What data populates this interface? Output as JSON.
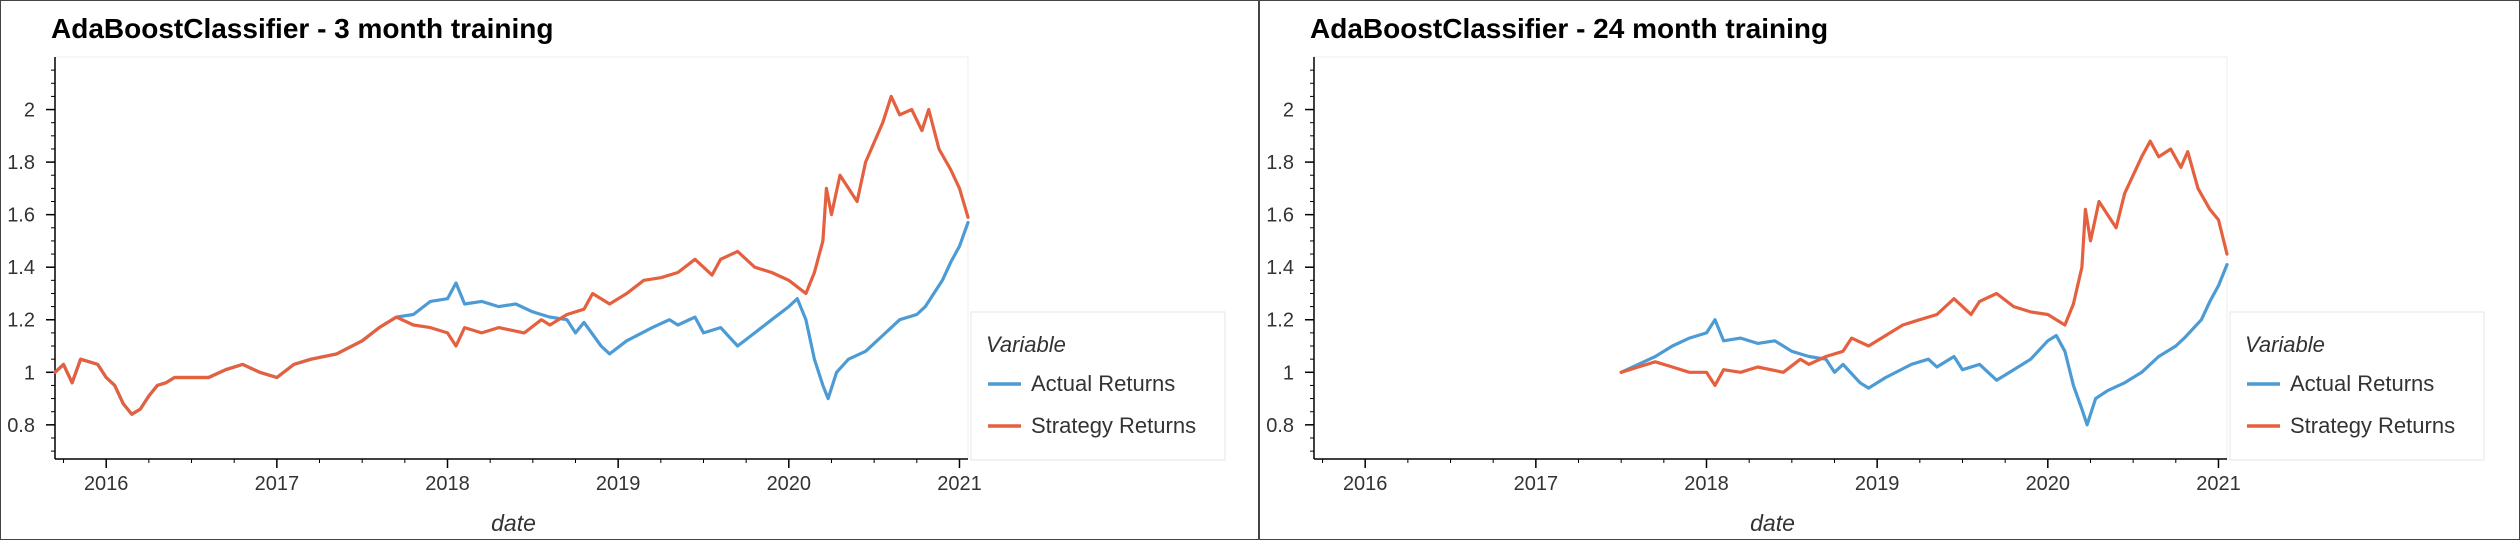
{
  "chart_data": [
    {
      "type": "line",
      "title": "AdaBoostClassifier - 3 month training",
      "xlabel": "date",
      "ylabel": "",
      "xlim": [
        2015.7,
        2021.05
      ],
      "ylim": [
        0.67,
        2.2
      ],
      "x_ticks": [
        2016,
        2017,
        2018,
        2019,
        2020,
        2021
      ],
      "x_tick_labels": [
        "2016",
        "2017",
        "2018",
        "2019",
        "2020",
        "2021"
      ],
      "y_ticks": [
        0.8,
        1,
        1.2,
        1.4,
        1.6,
        1.8,
        2
      ],
      "y_tick_labels": [
        "0.8",
        "1",
        "1.2",
        "1.4",
        "1.6",
        "1.8",
        "2"
      ],
      "grid": false,
      "legend_title": "Variable",
      "legend_position": "right",
      "series": [
        {
          "name": "Actual Returns",
          "color": "#4c9bd4",
          "points": [
            [
              2015.7,
              1.0
            ],
            [
              2015.75,
              1.03
            ],
            [
              2015.8,
              0.96
            ],
            [
              2015.85,
              1.05
            ],
            [
              2015.95,
              1.03
            ],
            [
              2016.0,
              0.98
            ],
            [
              2016.05,
              0.95
            ],
            [
              2016.1,
              0.88
            ],
            [
              2016.15,
              0.84
            ],
            [
              2016.2,
              0.86
            ],
            [
              2016.25,
              0.91
            ],
            [
              2016.3,
              0.95
            ],
            [
              2016.35,
              0.96
            ],
            [
              2016.4,
              0.98
            ],
            [
              2016.6,
              0.98
            ],
            [
              2016.7,
              1.01
            ],
            [
              2016.8,
              1.03
            ],
            [
              2016.9,
              1.0
            ],
            [
              2017.0,
              0.98
            ],
            [
              2017.1,
              1.03
            ],
            [
              2017.2,
              1.05
            ],
            [
              2017.35,
              1.07
            ],
            [
              2017.5,
              1.12
            ],
            [
              2017.6,
              1.17
            ],
            [
              2017.7,
              1.21
            ],
            [
              2017.8,
              1.22
            ],
            [
              2017.9,
              1.27
            ],
            [
              2018.0,
              1.28
            ],
            [
              2018.05,
              1.34
            ],
            [
              2018.1,
              1.26
            ],
            [
              2018.2,
              1.27
            ],
            [
              2018.3,
              1.25
            ],
            [
              2018.4,
              1.26
            ],
            [
              2018.5,
              1.23
            ],
            [
              2018.6,
              1.21
            ],
            [
              2018.7,
              1.2
            ],
            [
              2018.75,
              1.15
            ],
            [
              2018.8,
              1.19
            ],
            [
              2018.9,
              1.1
            ],
            [
              2018.95,
              1.07
            ],
            [
              2019.05,
              1.12
            ],
            [
              2019.2,
              1.17
            ],
            [
              2019.3,
              1.2
            ],
            [
              2019.35,
              1.18
            ],
            [
              2019.45,
              1.21
            ],
            [
              2019.5,
              1.15
            ],
            [
              2019.6,
              1.17
            ],
            [
              2019.7,
              1.1
            ],
            [
              2019.8,
              1.15
            ],
            [
              2019.9,
              1.2
            ],
            [
              2020.0,
              1.25
            ],
            [
              2020.05,
              1.28
            ],
            [
              2020.1,
              1.2
            ],
            [
              2020.15,
              1.05
            ],
            [
              2020.2,
              0.95
            ],
            [
              2020.23,
              0.9
            ],
            [
              2020.28,
              1.0
            ],
            [
              2020.35,
              1.05
            ],
            [
              2020.45,
              1.08
            ],
            [
              2020.55,
              1.14
            ],
            [
              2020.65,
              1.2
            ],
            [
              2020.75,
              1.22
            ],
            [
              2020.8,
              1.25
            ],
            [
              2020.9,
              1.35
            ],
            [
              2020.95,
              1.42
            ],
            [
              2021.0,
              1.48
            ],
            [
              2021.05,
              1.57
            ]
          ]
        },
        {
          "name": "Strategy Returns",
          "color": "#e4603f",
          "points": [
            [
              2015.7,
              1.0
            ],
            [
              2015.75,
              1.03
            ],
            [
              2015.8,
              0.96
            ],
            [
              2015.85,
              1.05
            ],
            [
              2015.95,
              1.03
            ],
            [
              2016.0,
              0.98
            ],
            [
              2016.05,
              0.95
            ],
            [
              2016.1,
              0.88
            ],
            [
              2016.15,
              0.84
            ],
            [
              2016.2,
              0.86
            ],
            [
              2016.25,
              0.91
            ],
            [
              2016.3,
              0.95
            ],
            [
              2016.35,
              0.96
            ],
            [
              2016.4,
              0.98
            ],
            [
              2016.6,
              0.98
            ],
            [
              2016.7,
              1.01
            ],
            [
              2016.8,
              1.03
            ],
            [
              2016.9,
              1.0
            ],
            [
              2017.0,
              0.98
            ],
            [
              2017.1,
              1.03
            ],
            [
              2017.2,
              1.05
            ],
            [
              2017.35,
              1.07
            ],
            [
              2017.5,
              1.12
            ],
            [
              2017.6,
              1.17
            ],
            [
              2017.7,
              1.21
            ],
            [
              2017.8,
              1.18
            ],
            [
              2017.9,
              1.17
            ],
            [
              2018.0,
              1.15
            ],
            [
              2018.05,
              1.1
            ],
            [
              2018.1,
              1.17
            ],
            [
              2018.2,
              1.15
            ],
            [
              2018.3,
              1.17
            ],
            [
              2018.45,
              1.15
            ],
            [
              2018.55,
              1.2
            ],
            [
              2018.6,
              1.18
            ],
            [
              2018.7,
              1.22
            ],
            [
              2018.8,
              1.24
            ],
            [
              2018.85,
              1.3
            ],
            [
              2018.95,
              1.26
            ],
            [
              2019.05,
              1.3
            ],
            [
              2019.15,
              1.35
            ],
            [
              2019.25,
              1.36
            ],
            [
              2019.35,
              1.38
            ],
            [
              2019.45,
              1.43
            ],
            [
              2019.55,
              1.37
            ],
            [
              2019.6,
              1.43
            ],
            [
              2019.7,
              1.46
            ],
            [
              2019.8,
              1.4
            ],
            [
              2019.9,
              1.38
            ],
            [
              2020.0,
              1.35
            ],
            [
              2020.1,
              1.3
            ],
            [
              2020.15,
              1.38
            ],
            [
              2020.2,
              1.5
            ],
            [
              2020.22,
              1.7
            ],
            [
              2020.25,
              1.6
            ],
            [
              2020.3,
              1.75
            ],
            [
              2020.4,
              1.65
            ],
            [
              2020.45,
              1.8
            ],
            [
              2020.55,
              1.95
            ],
            [
              2020.6,
              2.05
            ],
            [
              2020.65,
              1.98
            ],
            [
              2020.72,
              2.0
            ],
            [
              2020.78,
              1.92
            ],
            [
              2020.82,
              2.0
            ],
            [
              2020.88,
              1.85
            ],
            [
              2020.95,
              1.77
            ],
            [
              2021.0,
              1.7
            ],
            [
              2021.05,
              1.59
            ]
          ]
        }
      ]
    },
    {
      "type": "line",
      "title": "AdaBoostClassifier - 24 month training",
      "xlabel": "date",
      "ylabel": "",
      "xlim": [
        2015.7,
        2021.05
      ],
      "ylim": [
        0.67,
        2.2
      ],
      "x_ticks": [
        2016,
        2017,
        2018,
        2019,
        2020,
        2021
      ],
      "x_tick_labels": [
        "2016",
        "2017",
        "2018",
        "2019",
        "2020",
        "2021"
      ],
      "y_ticks": [
        0.8,
        1,
        1.2,
        1.4,
        1.6,
        1.8,
        2
      ],
      "y_tick_labels": [
        "0.8",
        "1",
        "1.2",
        "1.4",
        "1.6",
        "1.8",
        "2"
      ],
      "grid": false,
      "legend_title": "Variable",
      "legend_position": "right",
      "series": [
        {
          "name": "Actual Returns",
          "color": "#4c9bd4",
          "points": [
            [
              2017.5,
              1.0
            ],
            [
              2017.6,
              1.03
            ],
            [
              2017.7,
              1.06
            ],
            [
              2017.8,
              1.1
            ],
            [
              2017.9,
              1.13
            ],
            [
              2018.0,
              1.15
            ],
            [
              2018.05,
              1.2
            ],
            [
              2018.1,
              1.12
            ],
            [
              2018.2,
              1.13
            ],
            [
              2018.3,
              1.11
            ],
            [
              2018.4,
              1.12
            ],
            [
              2018.5,
              1.08
            ],
            [
              2018.6,
              1.06
            ],
            [
              2018.7,
              1.05
            ],
            [
              2018.75,
              1.0
            ],
            [
              2018.8,
              1.03
            ],
            [
              2018.9,
              0.96
            ],
            [
              2018.95,
              0.94
            ],
            [
              2019.05,
              0.98
            ],
            [
              2019.2,
              1.03
            ],
            [
              2019.3,
              1.05
            ],
            [
              2019.35,
              1.02
            ],
            [
              2019.45,
              1.06
            ],
            [
              2019.5,
              1.01
            ],
            [
              2019.6,
              1.03
            ],
            [
              2019.7,
              0.97
            ],
            [
              2019.8,
              1.01
            ],
            [
              2019.9,
              1.05
            ],
            [
              2020.0,
              1.12
            ],
            [
              2020.05,
              1.14
            ],
            [
              2020.1,
              1.08
            ],
            [
              2020.15,
              0.95
            ],
            [
              2020.2,
              0.86
            ],
            [
              2020.23,
              0.8
            ],
            [
              2020.28,
              0.9
            ],
            [
              2020.35,
              0.93
            ],
            [
              2020.45,
              0.96
            ],
            [
              2020.55,
              1.0
            ],
            [
              2020.65,
              1.06
            ],
            [
              2020.75,
              1.1
            ],
            [
              2020.8,
              1.13
            ],
            [
              2020.9,
              1.2
            ],
            [
              2020.95,
              1.27
            ],
            [
              2021.0,
              1.33
            ],
            [
              2021.05,
              1.41
            ]
          ]
        },
        {
          "name": "Strategy Returns",
          "color": "#e4603f",
          "points": [
            [
              2017.5,
              1.0
            ],
            [
              2017.6,
              1.02
            ],
            [
              2017.7,
              1.04
            ],
            [
              2017.8,
              1.02
            ],
            [
              2017.9,
              1.0
            ],
            [
              2018.0,
              1.0
            ],
            [
              2018.05,
              0.95
            ],
            [
              2018.1,
              1.01
            ],
            [
              2018.2,
              1.0
            ],
            [
              2018.3,
              1.02
            ],
            [
              2018.45,
              1.0
            ],
            [
              2018.55,
              1.05
            ],
            [
              2018.6,
              1.03
            ],
            [
              2018.7,
              1.06
            ],
            [
              2018.8,
              1.08
            ],
            [
              2018.85,
              1.13
            ],
            [
              2018.95,
              1.1
            ],
            [
              2019.05,
              1.14
            ],
            [
              2019.15,
              1.18
            ],
            [
              2019.25,
              1.2
            ],
            [
              2019.35,
              1.22
            ],
            [
              2019.45,
              1.28
            ],
            [
              2019.55,
              1.22
            ],
            [
              2019.6,
              1.27
            ],
            [
              2019.7,
              1.3
            ],
            [
              2019.8,
              1.25
            ],
            [
              2019.9,
              1.23
            ],
            [
              2020.0,
              1.22
            ],
            [
              2020.1,
              1.18
            ],
            [
              2020.15,
              1.26
            ],
            [
              2020.2,
              1.4
            ],
            [
              2020.22,
              1.62
            ],
            [
              2020.25,
              1.5
            ],
            [
              2020.3,
              1.65
            ],
            [
              2020.4,
              1.55
            ],
            [
              2020.45,
              1.68
            ],
            [
              2020.55,
              1.82
            ],
            [
              2020.6,
              1.88
            ],
            [
              2020.65,
              1.82
            ],
            [
              2020.72,
              1.85
            ],
            [
              2020.78,
              1.78
            ],
            [
              2020.82,
              1.84
            ],
            [
              2020.88,
              1.7
            ],
            [
              2020.95,
              1.62
            ],
            [
              2021.0,
              1.58
            ],
            [
              2021.05,
              1.45
            ]
          ]
        }
      ]
    }
  ]
}
